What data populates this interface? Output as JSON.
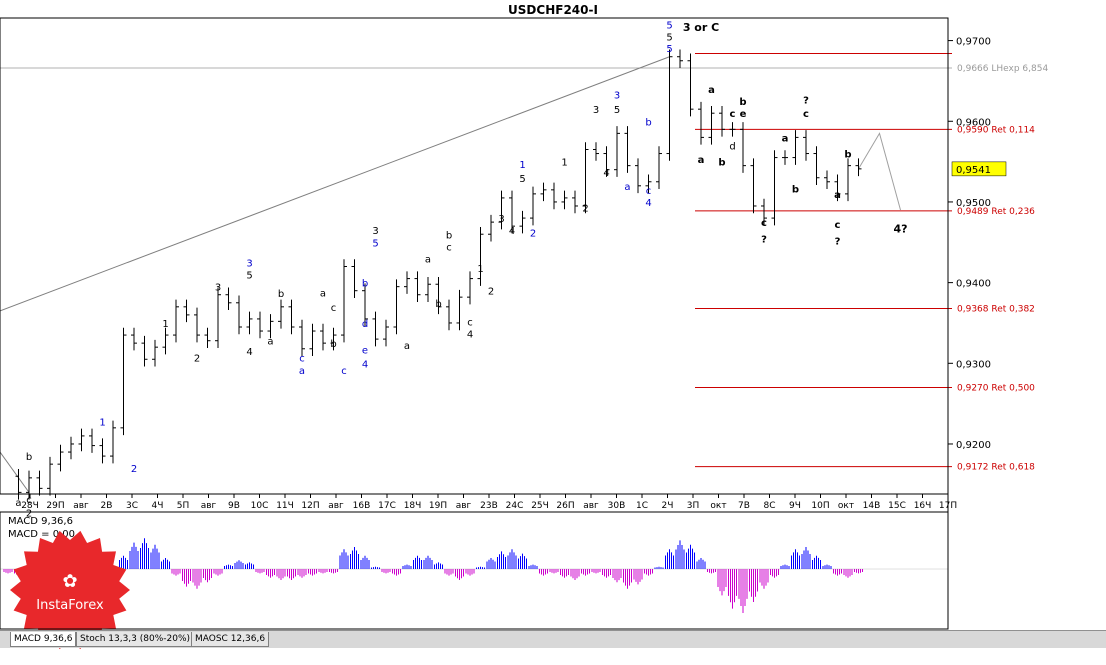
{
  "window": {
    "title": "USDCHF240-I"
  },
  "macd_panel": {
    "label": "MACD 9,36,6",
    "value_label": "MACD = 0.00"
  },
  "logo": {
    "text": "InstaForex"
  },
  "indicator_tabs": [
    "MACD 9,36,6",
    "Stoch 13,3,3 (80%-20%)",
    "MAOSC 12,36,6"
  ],
  "colors": {
    "bull_wave": "#0000cc",
    "bear_wave": "#000000",
    "fib_line": "#cc0000",
    "channel_line": "#7f7f7f",
    "macd_positive": "#0000ff",
    "macd_negative": "#cc00cc",
    "current_price_box": "#ffff00",
    "logo_red": "#e8282b"
  },
  "chart_data": {
    "type": "candlestick",
    "symbol": "USDCHF",
    "timeframe": "H4",
    "title": "USDCHF240-I",
    "y_axis": {
      "range": [
        0.9138,
        0.9728
      ],
      "ticks": [
        "0,9700",
        "0,9600",
        "0,9500",
        "0,9400",
        "0,9300",
        "0,9200"
      ],
      "current_price": "0,9541"
    },
    "x_axis": {
      "ticks": [
        "28Ч",
        "29П",
        "авг",
        "2В",
        "3С",
        "4Ч",
        "5П",
        "авг",
        "9В",
        "10С",
        "11Ч",
        "12П",
        "авг",
        "16В",
        "17С",
        "18Ч",
        "19П",
        "авг",
        "23В",
        "24С",
        "25Ч",
        "26П",
        "авг",
        "30В",
        "1С",
        "2Ч",
        "3П",
        "окт",
        "7В",
        "8С",
        "9Ч",
        "10П",
        "окт",
        "14В",
        "15С",
        "16Ч",
        "17П"
      ]
    },
    "fib_levels": [
      {
        "price": 0.9684,
        "label": ""
      },
      {
        "price": 0.959,
        "label": "0,9590 Ret 0,114"
      },
      {
        "price": 0.9489,
        "label": "0,9489 Ret 0,236"
      },
      {
        "price": 0.9368,
        "label": "0,9368 Ret 0,382"
      },
      {
        "price": 0.927,
        "label": "0,9270 Ret 0,500"
      },
      {
        "price": 0.9172,
        "label": "0,9172 Ret 0,618"
      }
    ],
    "horizontal_marker": {
      "price": 0.9666,
      "label": "0,9666 LHexp 6,854"
    },
    "price_path": [
      [
        0,
        0.916
      ],
      [
        1,
        0.914
      ],
      [
        2,
        0.9158
      ],
      [
        3,
        0.9145
      ],
      [
        4,
        0.9175
      ],
      [
        5,
        0.919
      ],
      [
        6,
        0.92
      ],
      [
        7,
        0.921
      ],
      [
        8,
        0.9198
      ],
      [
        9,
        0.9185
      ],
      [
        10,
        0.922
      ],
      [
        11,
        0.9335
      ],
      [
        12,
        0.9325
      ],
      [
        13,
        0.9305
      ],
      [
        14,
        0.932
      ],
      [
        15,
        0.9335
      ],
      [
        16,
        0.937
      ],
      [
        17,
        0.936
      ],
      [
        18,
        0.9335
      ],
      [
        19,
        0.9328
      ],
      [
        20,
        0.9385
      ],
      [
        21,
        0.9375
      ],
      [
        22,
        0.9345
      ],
      [
        23,
        0.9355
      ],
      [
        24,
        0.934
      ],
      [
        25,
        0.9352
      ],
      [
        26,
        0.937
      ],
      [
        27,
        0.9345
      ],
      [
        28,
        0.9318
      ],
      [
        29,
        0.934
      ],
      [
        30,
        0.9325
      ],
      [
        31,
        0.9335
      ],
      [
        32,
        0.942
      ],
      [
        33,
        0.939
      ],
      [
        34,
        0.9355
      ],
      [
        35,
        0.933
      ],
      [
        36,
        0.9345
      ],
      [
        37,
        0.9395
      ],
      [
        38,
        0.9405
      ],
      [
        39,
        0.9385
      ],
      [
        40,
        0.9398
      ],
      [
        41,
        0.937
      ],
      [
        42,
        0.935
      ],
      [
        43,
        0.9382
      ],
      [
        44,
        0.9405
      ],
      [
        45,
        0.946
      ],
      [
        46,
        0.9475
      ],
      [
        47,
        0.9505
      ],
      [
        48,
        0.947
      ],
      [
        49,
        0.948
      ],
      [
        50,
        0.951
      ],
      [
        51,
        0.9515
      ],
      [
        52,
        0.95
      ],
      [
        53,
        0.9505
      ],
      [
        54,
        0.9495
      ],
      [
        55,
        0.9565
      ],
      [
        56,
        0.956
      ],
      [
        57,
        0.954
      ],
      [
        58,
        0.9585
      ],
      [
        59,
        0.9545
      ],
      [
        60,
        0.952
      ],
      [
        61,
        0.9525
      ],
      [
        62,
        0.956
      ],
      [
        63,
        0.968
      ],
      [
        64,
        0.9675
      ],
      [
        65,
        0.9615
      ],
      [
        66,
        0.958
      ],
      [
        67,
        0.961
      ],
      [
        68,
        0.959
      ],
      [
        69,
        0.959
      ],
      [
        70,
        0.9545
      ],
      [
        71,
        0.9495
      ],
      [
        72,
        0.948
      ],
      [
        73,
        0.9555
      ],
      [
        74,
        0.9555
      ],
      [
        75,
        0.958
      ],
      [
        76,
        0.956
      ],
      [
        77,
        0.953
      ],
      [
        78,
        0.9525
      ],
      [
        79,
        0.951
      ],
      [
        80,
        0.9545
      ],
      [
        81,
        0.9541
      ]
    ],
    "projection": [
      [
        81,
        0.9541
      ],
      [
        83,
        0.9585
      ],
      [
        85,
        0.949
      ]
    ],
    "wave_labels": [
      {
        "t": "a",
        "i": 1,
        "p": 0.9123,
        "c": "k"
      },
      {
        "t": "c",
        "i": 2,
        "p": 0.9127,
        "c": "k"
      },
      {
        "t": "2",
        "i": 2,
        "p": 0.911,
        "c": "k"
      },
      {
        "t": "b",
        "i": 2,
        "p": 0.918,
        "c": "k"
      },
      {
        "t": "1",
        "i": 9,
        "p": 0.9223,
        "c": "b"
      },
      {
        "t": "2",
        "i": 12,
        "p": 0.9165,
        "c": "b"
      },
      {
        "t": "1",
        "i": 15,
        "p": 0.9345,
        "c": "k"
      },
      {
        "t": "2",
        "i": 18,
        "p": 0.9302,
        "c": "k"
      },
      {
        "t": "3",
        "i": 20,
        "p": 0.939,
        "c": "k"
      },
      {
        "t": "3",
        "i": 23,
        "p": 0.942,
        "c": "b"
      },
      {
        "t": "5",
        "i": 23,
        "p": 0.9405,
        "c": "k"
      },
      {
        "t": "4",
        "i": 23,
        "p": 0.931,
        "c": "k"
      },
      {
        "t": "a",
        "i": 25,
        "p": 0.9323,
        "c": "k"
      },
      {
        "t": "b",
        "i": 26,
        "p": 0.9382,
        "c": "k"
      },
      {
        "t": "c",
        "i": 28,
        "p": 0.9302,
        "c": "b"
      },
      {
        "t": "a",
        "i": 28,
        "p": 0.9287,
        "c": "b"
      },
      {
        "t": "a",
        "i": 30,
        "p": 0.9383,
        "c": "k"
      },
      {
        "t": "b",
        "i": 31,
        "p": 0.932,
        "c": "k"
      },
      {
        "t": "c",
        "i": 31,
        "p": 0.9365,
        "c": "k"
      },
      {
        "t": "c",
        "i": 32,
        "p": 0.9287,
        "c": "b"
      },
      {
        "t": "e",
        "i": 34,
        "p": 0.9312,
        "c": "b"
      },
      {
        "t": "4",
        "i": 34,
        "p": 0.9295,
        "c": "b"
      },
      {
        "t": "d",
        "i": 34,
        "p": 0.9345,
        "c": "b"
      },
      {
        "t": "b",
        "i": 34,
        "p": 0.9395,
        "c": "b"
      },
      {
        "t": "3",
        "i": 35,
        "p": 0.946,
        "c": "k"
      },
      {
        "t": "5",
        "i": 35,
        "p": 0.9445,
        "c": "b"
      },
      {
        "t": "a",
        "i": 38,
        "p": 0.9318,
        "c": "k"
      },
      {
        "t": "a",
        "i": 40,
        "p": 0.9425,
        "c": "k"
      },
      {
        "t": "c",
        "i": 42,
        "p": 0.944,
        "c": "k"
      },
      {
        "t": "b",
        "i": 42,
        "p": 0.9455,
        "c": "k"
      },
      {
        "t": "b",
        "i": 41,
        "p": 0.937,
        "c": "k"
      },
      {
        "t": "c",
        "i": 44,
        "p": 0.9347,
        "c": "k"
      },
      {
        "t": "4",
        "i": 44,
        "p": 0.9332,
        "c": "k"
      },
      {
        "t": "1",
        "i": 45,
        "p": 0.9413,
        "c": "k"
      },
      {
        "t": "2",
        "i": 46,
        "p": 0.9385,
        "c": "k"
      },
      {
        "t": "3",
        "i": 47,
        "p": 0.9475,
        "c": "k"
      },
      {
        "t": "4",
        "i": 48,
        "p": 0.946,
        "c": "k"
      },
      {
        "t": "1",
        "i": 49,
        "p": 0.9542,
        "c": "b"
      },
      {
        "t": "5",
        "i": 49,
        "p": 0.9525,
        "c": "k"
      },
      {
        "t": "2",
        "i": 50,
        "p": 0.9457,
        "c": "b"
      },
      {
        "t": "1",
        "i": 53,
        "p": 0.9545,
        "c": "k"
      },
      {
        "t": "2",
        "i": 55,
        "p": 0.9488,
        "c": "k"
      },
      {
        "t": "3",
        "i": 56,
        "p": 0.961,
        "c": "k"
      },
      {
        "t": "3",
        "i": 58,
        "p": 0.9628,
        "c": "b"
      },
      {
        "t": "5",
        "i": 58,
        "p": 0.961,
        "c": "k"
      },
      {
        "t": "4",
        "i": 57,
        "p": 0.9532,
        "c": "k"
      },
      {
        "t": "a",
        "i": 59,
        "p": 0.9515,
        "c": "b"
      },
      {
        "t": "b",
        "i": 61,
        "p": 0.9595,
        "c": "b"
      },
      {
        "t": "c",
        "i": 61,
        "p": 0.951,
        "c": "b"
      },
      {
        "t": "4",
        "i": 61,
        "p": 0.9495,
        "c": "b"
      },
      {
        "t": "5",
        "i": 63,
        "p": 0.9715,
        "c": "b"
      },
      {
        "t": "5",
        "i": 63,
        "p": 0.97,
        "c": "k"
      },
      {
        "t": "5",
        "i": 63,
        "p": 0.9686,
        "c": "b"
      },
      {
        "t": "3 or C",
        "i": 66,
        "p": 0.9712,
        "c": "k"
      },
      {
        "t": "a",
        "i": 67,
        "p": 0.9635,
        "c": "k"
      },
      {
        "t": "a",
        "i": 66,
        "p": 0.9548,
        "c": "k"
      },
      {
        "t": "b",
        "i": 70,
        "p": 0.962,
        "c": "k"
      },
      {
        "t": "c",
        "i": 69,
        "p": 0.9605,
        "c": "k"
      },
      {
        "t": "e",
        "i": 70,
        "p": 0.9605,
        "c": "k"
      },
      {
        "t": "b",
        "i": 68,
        "p": 0.9545,
        "c": "k"
      },
      {
        "t": "d",
        "i": 69,
        "p": 0.9565,
        "c": "k"
      },
      {
        "t": "c",
        "i": 72,
        "p": 0.947,
        "c": "k"
      },
      {
        "t": "?",
        "i": 72,
        "p": 0.945,
        "c": "k"
      },
      {
        "t": "a",
        "i": 74,
        "p": 0.9575,
        "c": "k"
      },
      {
        "t": "b",
        "i": 75,
        "p": 0.9512,
        "c": "k"
      },
      {
        "t": "?",
        "i": 76,
        "p": 0.9622,
        "c": "k"
      },
      {
        "t": "c",
        "i": 76,
        "p": 0.9605,
        "c": "k"
      },
      {
        "t": "a",
        "i": 79,
        "p": 0.9505,
        "c": "k"
      },
      {
        "t": "b",
        "i": 80,
        "p": 0.9555,
        "c": "k"
      },
      {
        "t": "c",
        "i": 79,
        "p": 0.9468,
        "c": "k"
      },
      {
        "t": "?",
        "i": 79,
        "p": 0.9447,
        "c": "k"
      },
      {
        "t": "4?",
        "i": 85,
        "p": 0.9462,
        "c": "k"
      }
    ],
    "macd": {
      "label": "MACD 9,36,6",
      "values": [
        -0.2,
        -0.3,
        -0.4,
        -0.3,
        -0.2,
        0.2,
        0.4,
        0.5,
        0.4,
        -0.2,
        -0.5,
        0.6,
        1.2,
        1.4,
        1.1,
        0.5,
        -0.3,
        -0.8,
        -0.9,
        -0.6,
        -0.3,
        0.2,
        0.4,
        0.3,
        -0.2,
        -0.4,
        -0.5,
        -0.5,
        -0.4,
        -0.3,
        -0.2,
        -0.2,
        0.9,
        1.0,
        0.6,
        0.1,
        -0.2,
        -0.3,
        0.2,
        0.6,
        0.6,
        0.3,
        -0.3,
        -0.5,
        -0.3,
        0.1,
        0.5,
        0.8,
        0.9,
        0.7,
        0.2,
        -0.3,
        -0.2,
        -0.4,
        -0.5,
        -0.3,
        -0.2,
        -0.4,
        -0.6,
        -0.9,
        -0.7,
        -0.3,
        0.1,
        0.9,
        1.3,
        1.1,
        0.5,
        -0.2,
        -1.2,
        -1.8,
        -2.0,
        -1.5,
        -0.9,
        -0.4,
        0.2,
        0.9,
        1.0,
        0.6,
        0.2,
        -0.3,
        -0.4,
        -0.2
      ]
    }
  }
}
